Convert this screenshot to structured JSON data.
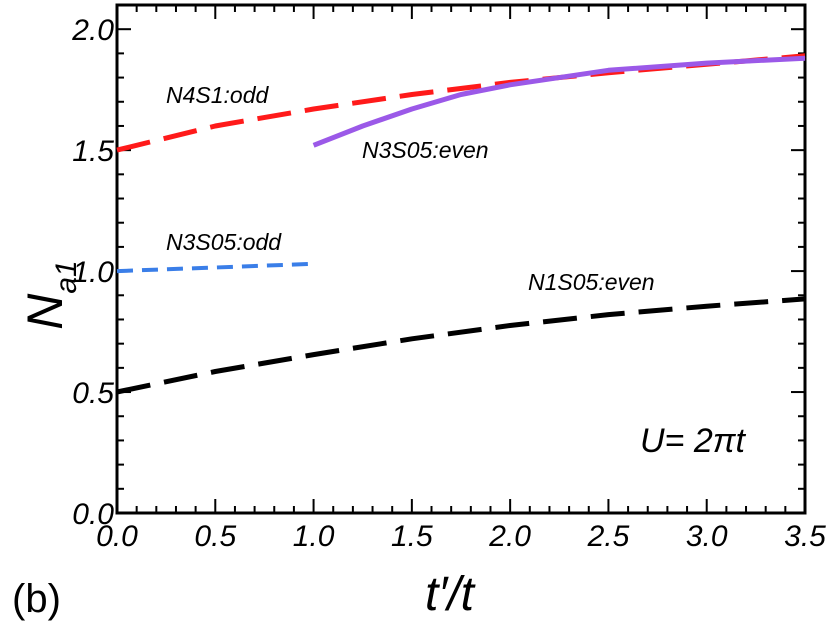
{
  "chart_data": {
    "type": "line",
    "panel_label": "(b)",
    "xlabel": "t′/t",
    "ylabel_main": "N",
    "ylabel_sub": "a1",
    "annotation": "U= 2πt",
    "xlim": [
      0,
      3.5
    ],
    "ylim": [
      0,
      2.1
    ],
    "x_ticks": [
      "0.0",
      "0.5",
      "1.0",
      "1.5",
      "2.0",
      "2.5",
      "3.0",
      "3.5"
    ],
    "y_ticks": [
      "0.0",
      "0.5",
      "1.0",
      "1.5",
      "2.0"
    ],
    "series": [
      {
        "name": "N4S1:odd",
        "color": "#ff1a1a",
        "style": "long-dash",
        "x": [
          0,
          0.5,
          1.0,
          1.5,
          2.0,
          2.5,
          3.0,
          3.5
        ],
        "y": [
          1.5,
          1.6,
          1.67,
          1.73,
          1.78,
          1.82,
          1.855,
          1.89
        ]
      },
      {
        "name": "N3S05:even",
        "color": "#9b59e8",
        "style": "solid",
        "x": [
          1.0,
          1.25,
          1.5,
          1.75,
          2.0,
          2.5,
          3.0,
          3.5
        ],
        "y": [
          1.52,
          1.6,
          1.67,
          1.73,
          1.77,
          1.83,
          1.86,
          1.88
        ]
      },
      {
        "name": "N3S05:odd",
        "color": "#3a7ee8",
        "style": "short-dash",
        "x": [
          0,
          0.5,
          1.0
        ],
        "y": [
          1.0,
          1.015,
          1.03
        ]
      },
      {
        "name": "N1S05:even",
        "color": "#000000",
        "style": "long-dash",
        "x": [
          0,
          0.5,
          1.0,
          1.5,
          2.0,
          2.5,
          3.0,
          3.5
        ],
        "y": [
          0.5,
          0.585,
          0.655,
          0.72,
          0.775,
          0.82,
          0.855,
          0.885
        ]
      }
    ]
  }
}
